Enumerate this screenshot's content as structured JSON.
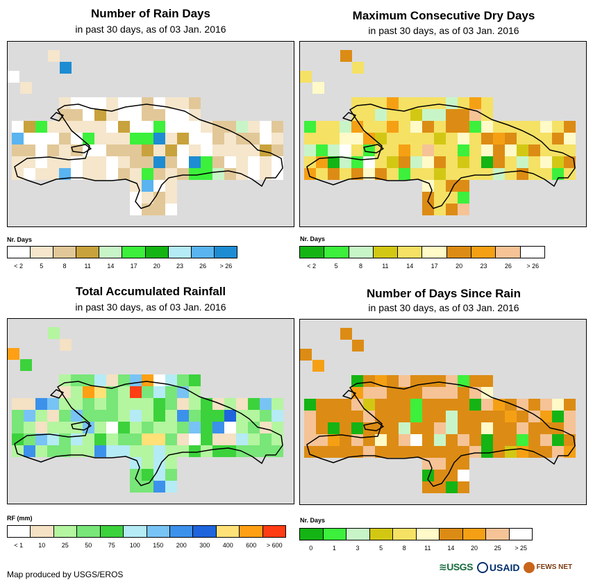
{
  "panels": [
    {
      "title": "Number of Rain Days",
      "subtitle": "in past 30 days, as of 03 Jan. 2016",
      "legend_title": "Nr. Days",
      "legend_colors": [
        "#ffffff",
        "#f5e6cc",
        "#e2c898",
        "#c8a23c",
        "#c8f5c8",
        "#3cf03c",
        "#14b414",
        "#b4ebf5",
        "#5ab4f0",
        "#1e8cd2"
      ],
      "legend_labels": [
        "< 2",
        "5",
        "8",
        "11",
        "14",
        "17",
        "20",
        "23",
        "26",
        "> 26"
      ],
      "cell_palette": [
        "#ffffff",
        "#f5e6cc",
        "#e2c898",
        "#c8a23c",
        "#c8f5c8",
        "#3cf03c",
        "#14b414",
        "#b4ebf5",
        "#5ab4f0",
        "#1e8cd2"
      ]
    },
    {
      "title": "Maximum Consecutive Dry Days",
      "subtitle": "in past 30 days, as of 03 Jan. 2016",
      "legend_title": "Nr. Days",
      "legend_colors": [
        "#14b414",
        "#3cf03c",
        "#c8f5c8",
        "#d2c814",
        "#f5e164",
        "#fffac8",
        "#dc8c14",
        "#f5a014",
        "#f5c396",
        "#ffffff"
      ],
      "legend_labels": [
        "< 2",
        "5",
        "8",
        "11",
        "14",
        "17",
        "20",
        "23",
        "26",
        "> 26"
      ],
      "cell_palette": [
        "#14b414",
        "#3cf03c",
        "#c8f5c8",
        "#d2c814",
        "#f5e164",
        "#fffac8",
        "#dc8c14",
        "#f5a014",
        "#f5c396",
        "#ffffff"
      ]
    },
    {
      "title": "Total Accumulated Rainfall",
      "subtitle": "in past 30 days, as of 03 Jan. 2016",
      "legend_title": "RF (mm)",
      "legend_colors": [
        "#ffffff",
        "#f5e1c3",
        "#b4f5a0",
        "#78e678",
        "#3cd23c",
        "#b4ebf5",
        "#78c3f5",
        "#3c91eb",
        "#1e64dc",
        "#ffe178",
        "#ffa014",
        "#ff3c14"
      ],
      "legend_labels": [
        "< 1",
        "10",
        "25",
        "50",
        "75",
        "100",
        "150",
        "200",
        "300",
        "400",
        "600",
        "> 600"
      ],
      "cell_palette": [
        "#ffffff",
        "#f5e1c3",
        "#b4f5a0",
        "#78e678",
        "#3cd23c",
        "#b4ebf5",
        "#78c3f5",
        "#3c91eb",
        "#1e64dc",
        "#ffe178",
        "#ffa014",
        "#ff3c14"
      ]
    },
    {
      "title": "Number of Days Since Rain",
      "subtitle": "in past 30 days, as of 03 Jan. 2016",
      "legend_title": "Nr. Days",
      "legend_colors": [
        "#14b414",
        "#3cf03c",
        "#c8f5c8",
        "#d2c814",
        "#f5e164",
        "#fffac8",
        "#dc8c14",
        "#f5a014",
        "#f5c396",
        "#ffffff"
      ],
      "legend_labels": [
        "0",
        "1",
        "3",
        "5",
        "8",
        "11",
        "14",
        "20",
        "25",
        "> 25"
      ],
      "cell_palette": [
        "#14b414",
        "#3cf03c",
        "#c8f5c8",
        "#d2c814",
        "#f5e164",
        "#fffac8",
        "#dc8c14",
        "#f5a014",
        "#f5c396",
        "#ffffff"
      ]
    }
  ],
  "footer": {
    "credit": "Map produced by USGS/EROS",
    "logo_usgs": "USGS",
    "logo_usaid": "USAID",
    "logo_fews": "FEWS NET"
  }
}
